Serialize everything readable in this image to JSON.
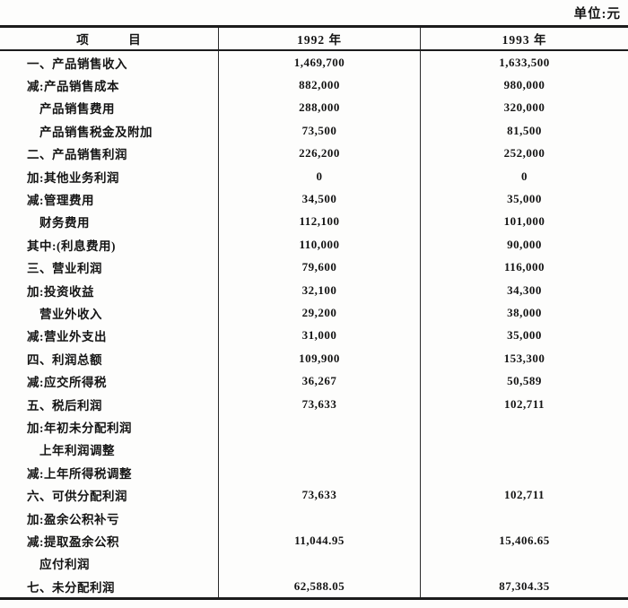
{
  "unit_label": "单位:元",
  "table": {
    "header": {
      "item_col": "项　　　目",
      "year1_col": "1992 年",
      "year2_col": "1993 年"
    },
    "rows": [
      {
        "label": "一、产品销售收入",
        "indent": false,
        "v1992": "1,469,700",
        "v1993": "1,633,500"
      },
      {
        "label": "减:产品销售成本",
        "indent": false,
        "v1992": "882,000",
        "v1993": "980,000"
      },
      {
        "label": "产品销售费用",
        "indent": true,
        "v1992": "288,000",
        "v1993": "320,000"
      },
      {
        "label": "产品销售税金及附加",
        "indent": true,
        "v1992": "73,500",
        "v1993": "81,500"
      },
      {
        "label": "二、产品销售利润",
        "indent": false,
        "v1992": "226,200",
        "v1993": "252,000"
      },
      {
        "label": "加:其他业务利润",
        "indent": false,
        "v1992": "0",
        "v1993": "0"
      },
      {
        "label": "减:管理费用",
        "indent": false,
        "v1992": "34,500",
        "v1993": "35,000"
      },
      {
        "label": "财务费用",
        "indent": true,
        "v1992": "112,100",
        "v1993": "101,000"
      },
      {
        "label": "其中:(利息费用)",
        "indent": false,
        "v1992": "110,000",
        "v1993": "90,000"
      },
      {
        "label": "三、营业利润",
        "indent": false,
        "v1992": "79,600",
        "v1993": "116,000"
      },
      {
        "label": "加:投资收益",
        "indent": false,
        "v1992": "32,100",
        "v1993": "34,300"
      },
      {
        "label": "营业外收入",
        "indent": true,
        "v1992": "29,200",
        "v1993": "38,000"
      },
      {
        "label": "减:营业外支出",
        "indent": false,
        "v1992": "31,000",
        "v1993": "35,000"
      },
      {
        "label": "四、利润总额",
        "indent": false,
        "v1992": "109,900",
        "v1993": "153,300"
      },
      {
        "label": "减:应交所得税",
        "indent": false,
        "v1992": "36,267",
        "v1993": "50,589"
      },
      {
        "label": "五、税后利润",
        "indent": false,
        "v1992": "73,633",
        "v1993": "102,711"
      },
      {
        "label": "加:年初未分配利润",
        "indent": false,
        "v1992": "",
        "v1993": ""
      },
      {
        "label": "上年利润调整",
        "indent": true,
        "v1992": "",
        "v1993": ""
      },
      {
        "label": "减:上年所得税调整",
        "indent": false,
        "v1992": "",
        "v1993": ""
      },
      {
        "label": "六、可供分配利润",
        "indent": false,
        "v1992": "73,633",
        "v1993": "102,711"
      },
      {
        "label": "加:盈余公积补亏",
        "indent": false,
        "v1992": "",
        "v1993": ""
      },
      {
        "label": "减:提取盈余公积",
        "indent": false,
        "v1992": "11,044.95",
        "v1993": "15,406.65"
      },
      {
        "label": "应付利润",
        "indent": true,
        "v1992": "",
        "v1993": ""
      },
      {
        "label": "七、未分配利润",
        "indent": false,
        "v1992": "62,588.05",
        "v1993": "87,304.35"
      }
    ]
  }
}
